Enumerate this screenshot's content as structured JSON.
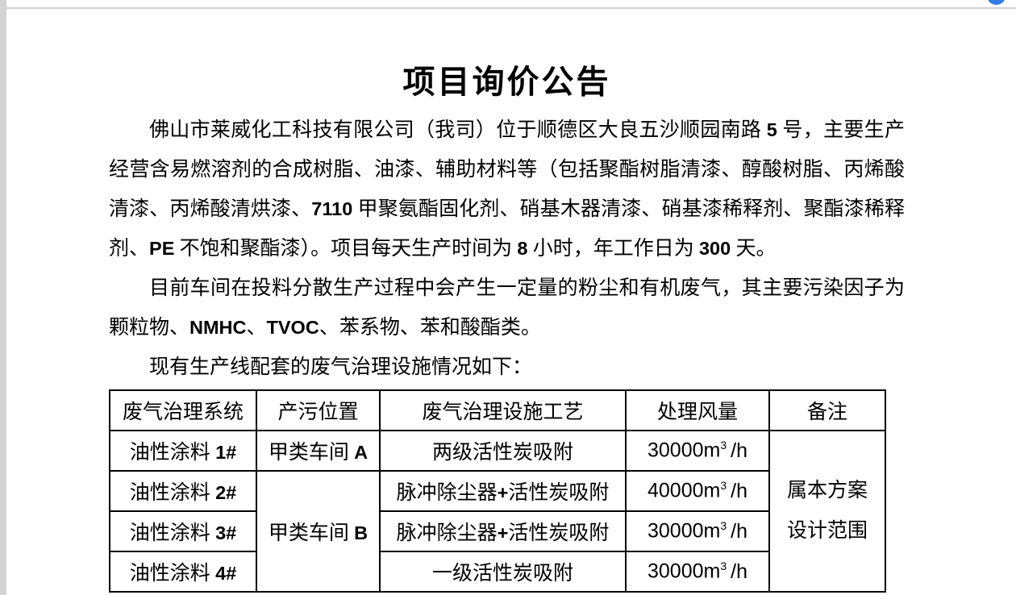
{
  "viewer": {
    "floating_button_color": "#2e7ce4"
  },
  "doc": {
    "title": "项目询价公告",
    "paragraphs": [
      "佛山市莱威化工科技有限公司（我司）位于顺德区大良五沙顺园南路 5 号，主要生产经营含易燃溶剂的合成树脂、油漆、辅助材料等（包括聚酯树脂清漆、醇酸树脂、丙烯酸清漆、丙烯酸清烘漆、7110 甲聚氨酯固化剂、硝基木器清漆、硝基漆稀释剂、聚酯漆稀释剂、PE 不饱和聚酯漆）。项目每天生产时间为 8 小时，年工作日为 300 天。",
      "目前车间在投料分散生产过程中会产生一定量的粉尘和有机废气，其主要污染因子为颗粒物、NMHC、TVOC、苯系物、苯和酸酯类。",
      "现有生产线配套的废气治理设施情况如下："
    ],
    "table": {
      "headers": [
        "废气治理系统",
        "产污位置",
        "废气治理设施工艺",
        "处理风量",
        "备注"
      ],
      "rows": [
        {
          "system": "油性涂料 1#",
          "location": "甲类车间 A",
          "process": "两级活性炭吸附",
          "airflow": {
            "num": "30000m",
            "sup": "3",
            "unit": "/h"
          }
        },
        {
          "system": "油性涂料 2#",
          "location": "甲类车间 B",
          "process": "脉冲除尘器+活性炭吸附",
          "airflow": {
            "num": "40000m",
            "sup": "3",
            "unit": "/h"
          }
        },
        {
          "system": "油性涂料 3#",
          "process": "脉冲除尘器+活性炭吸附",
          "airflow": {
            "num": "30000m",
            "sup": "3",
            "unit": "/h"
          }
        },
        {
          "system": "油性涂料 4#",
          "process": "一级活性炭吸附",
          "airflow": {
            "num": "30000m",
            "sup": "3",
            "unit": "/h"
          }
        }
      ],
      "remark": [
        "属本方案",
        "设计范围"
      ]
    }
  }
}
